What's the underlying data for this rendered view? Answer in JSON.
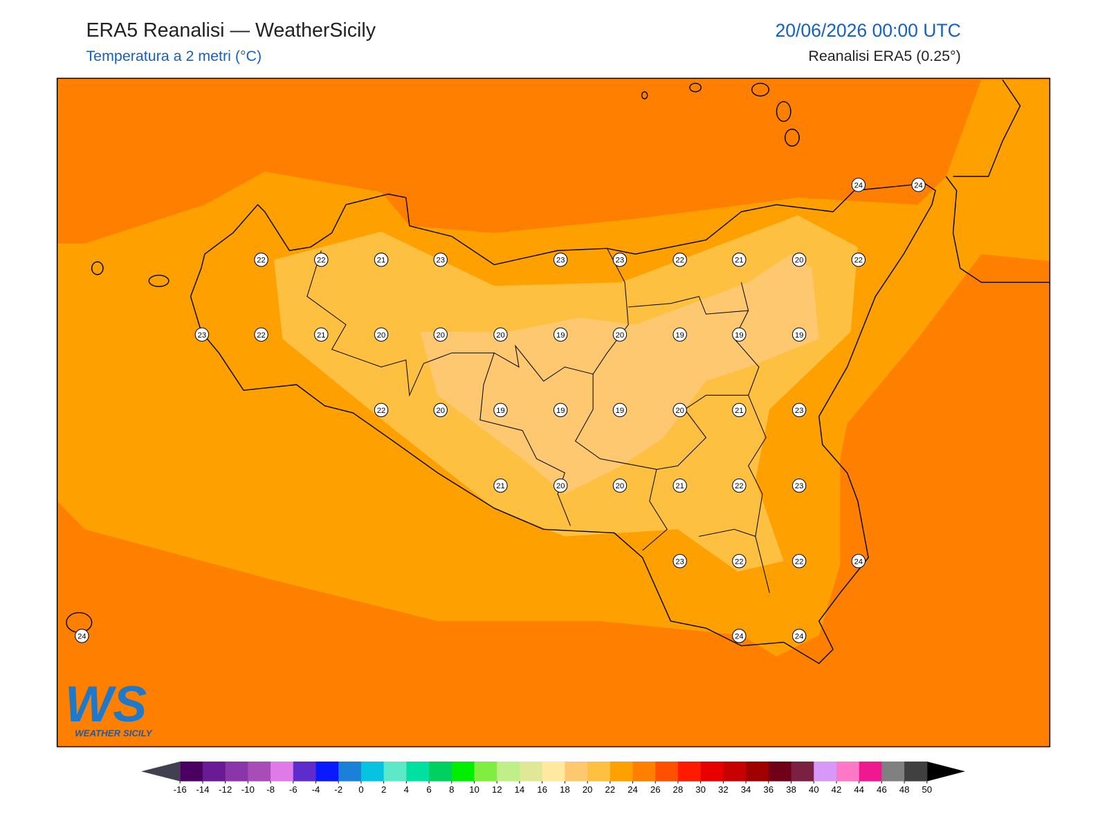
{
  "header": {
    "title": "ERA5 Reanalisi — WeatherSicily",
    "subtitle": "Temperatura a 2 metri (°C)",
    "datetime": "20/06/2026 00:00 UTC",
    "source": "Reanalisi ERA5 (0.25°)"
  },
  "stations": [
    24,
    24,
    22,
    22,
    21,
    23,
    23,
    23,
    22,
    21,
    20,
    22,
    23,
    22,
    21,
    20,
    20,
    20,
    19,
    20,
    19,
    19,
    19,
    22,
    20,
    19,
    19,
    19,
    20,
    21,
    23,
    21,
    20,
    20,
    21,
    22,
    23,
    23,
    22,
    22,
    24,
    24,
    24,
    24
  ],
  "colorbar": {
    "ticks": [
      -16,
      -14,
      -12,
      -10,
      -8,
      -6,
      -4,
      -2,
      0,
      2,
      4,
      6,
      8,
      10,
      12,
      14,
      16,
      18,
      20,
      22,
      24,
      26,
      28,
      30,
      32,
      34,
      36,
      38,
      40,
      42,
      44,
      46,
      48,
      50
    ],
    "colors": [
      "#4a0060",
      "#6b1a96",
      "#8a35a8",
      "#a84cb8",
      "#e07ae8",
      "#5e2bcc",
      "#0a1aff",
      "#1a80d8",
      "#08c3e0",
      "#5de8c8",
      "#00e0a0",
      "#00d060",
      "#00ee00",
      "#80ee40",
      "#c0ee88",
      "#e0e898",
      "#ffe8a0",
      "#fdc870",
      "#fdc040",
      "#fda000",
      "#ff8000",
      "#ff5000",
      "#ff1a00",
      "#e80000",
      "#c80000",
      "#a00000",
      "#700018",
      "#7a2040",
      "#d898f8",
      "#ff78c8",
      "#f01890",
      "#808080",
      "#404040"
    ],
    "under_color": "#404050",
    "over_color": "#000000"
  },
  "logo": {
    "mark": "WS",
    "name": "WEATHER SICILY"
  }
}
